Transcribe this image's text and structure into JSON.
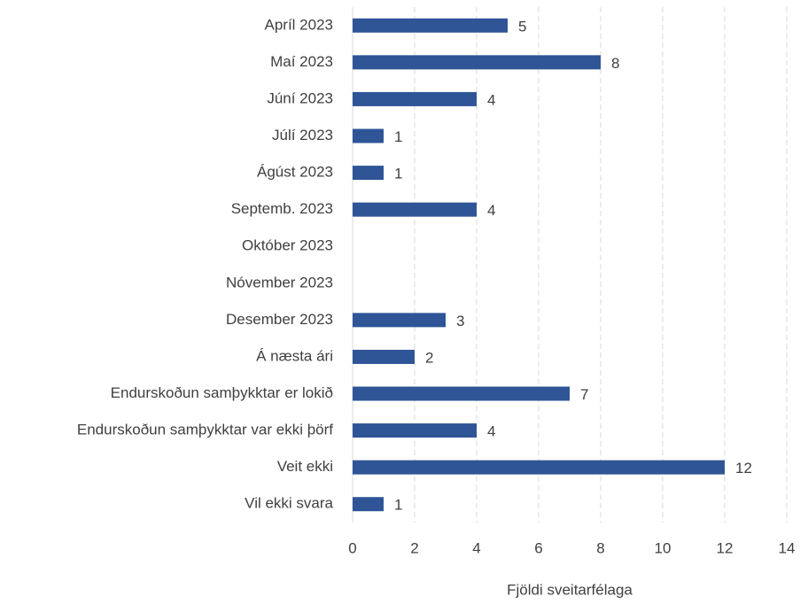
{
  "chart_data": {
    "type": "barh",
    "xlabel": "Fjöldi sveitarfélaga",
    "categories": [
      "Apríl 2023",
      "Maí 2023",
      "Júní 2023",
      "Júlí 2023",
      "Ágúst 2023",
      "Septemb. 2023",
      "Október 2023",
      "Nóvember 2023",
      "Desember 2023",
      "Á næsta ári",
      "Endurskoðun samþykktar er lokið",
      "Endurskoðun samþykktar var ekki þörf",
      "Veit ekki",
      "Vil ekki svara"
    ],
    "values": [
      5,
      8,
      4,
      1,
      1,
      4,
      null,
      null,
      3,
      2,
      7,
      4,
      12,
      1
    ],
    "color": "#2f5597",
    "xlim": [
      0,
      14
    ],
    "xticks": [
      0,
      2,
      4,
      6,
      8,
      10,
      12,
      14
    ],
    "grid": true
  }
}
